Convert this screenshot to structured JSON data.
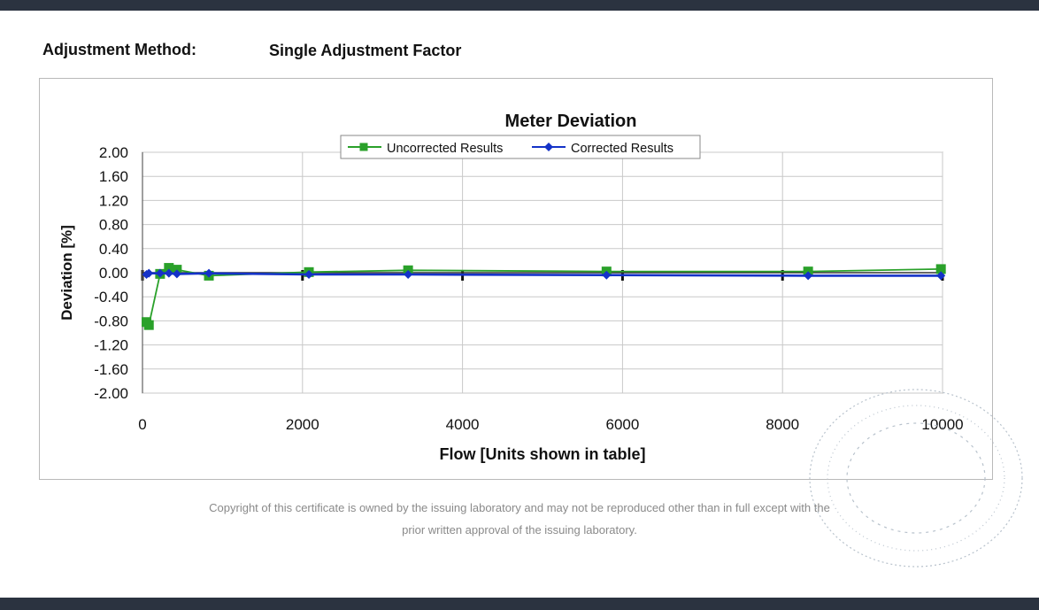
{
  "header": {
    "method_label": "Adjustment Method:",
    "method_value": "Single Adjustment Factor"
  },
  "footer": {
    "line1": "Copyright of this certificate is owned by the issuing laboratory and may not be reproduced other than in full except with the",
    "line2": "prior written approval of the issuing laboratory."
  },
  "colors": {
    "uncorrected": "#2aa12a",
    "corrected": "#1432c8",
    "grid": "#c8c8c8",
    "seal": "#b8c2cc"
  },
  "chart_data": {
    "type": "line",
    "title": "Meter Deviation",
    "xlabel": "Flow [Units shown in table]",
    "ylabel": "Deviation [%]",
    "xlim": [
      0,
      10000
    ],
    "ylim": [
      -2.0,
      2.0
    ],
    "xticks": [
      "0",
      "2000",
      "4000",
      "6000",
      "8000",
      "10000"
    ],
    "yticks": [
      "2.00",
      "1.60",
      "1.20",
      "0.80",
      "0.40",
      "0.00",
      "-0.40",
      "-0.80",
      "-1.20",
      "-1.60",
      "-2.00"
    ],
    "legend_position": "top-center",
    "grid": true,
    "series": [
      {
        "name": "Uncorrected Results",
        "marker": "square",
        "x": [
          50,
          80,
          220,
          330,
          430,
          830,
          2080,
          3320,
          5800,
          8320,
          9980
        ],
        "y": [
          -0.82,
          -0.87,
          -0.02,
          0.08,
          0.05,
          -0.05,
          0.01,
          0.04,
          0.02,
          0.02,
          0.06
        ]
      },
      {
        "name": "Corrected Results",
        "marker": "diamond",
        "x": [
          50,
          80,
          220,
          330,
          430,
          830,
          2080,
          3320,
          5800,
          8320,
          9980
        ],
        "y": [
          -0.03,
          -0.01,
          -0.01,
          -0.01,
          -0.02,
          -0.01,
          -0.03,
          -0.03,
          -0.04,
          -0.05,
          -0.05
        ]
      }
    ]
  }
}
